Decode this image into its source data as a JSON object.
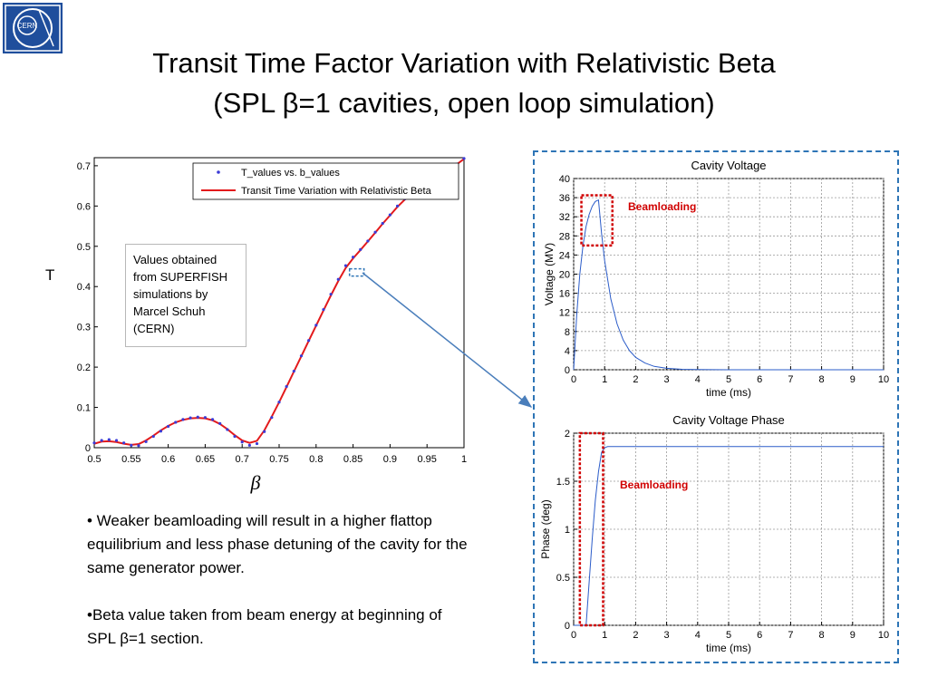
{
  "slide": {
    "title_line1": "Transit Time Factor Variation with Relativistic Beta",
    "title_line2": "(SPL β=1 cavities, open loop simulation)",
    "logo_text": "CERN",
    "t_axis_label": "T",
    "annotation": "Values obtained from SUPERFISH simulations by Marcel Schuh (CERN)",
    "bullet1": "• Weaker beamloading will result in a higher flattop equilibrium and less phase detuning of the cavity for the same generator power.",
    "bullet2": "•Beta value taken from beam energy at beginning of SPL β=1 section.",
    "beamloading_label_1": "Beamloading",
    "beamloading_label_2": "Beamloading"
  },
  "colors": {
    "accent_blue": "#2e75b6",
    "fit_red": "#e31a1c",
    "marker_blue": "#3b3bd6",
    "trace_blue": "#2b5cc9",
    "highlight_red": "#d00000",
    "logo_blue": "#1f4e9c"
  },
  "chart_data": [
    {
      "type": "line",
      "title": "",
      "xlabel": "β",
      "ylabel": "T",
      "xlim": [
        0.5,
        1.0
      ],
      "ylim": [
        0,
        0.72
      ],
      "xticks": [
        0.5,
        0.55,
        0.6,
        0.65,
        0.7,
        0.75,
        0.8,
        0.85,
        0.9,
        0.95,
        1
      ],
      "xtick_labels": [
        "0.5",
        "0.55",
        "0.6",
        "0.65",
        "0.7",
        "0.75",
        "0.8",
        "0.85",
        "0.9",
        "0.95",
        "1"
      ],
      "yticks": [
        0,
        0.1,
        0.2,
        0.3,
        0.4,
        0.5,
        0.6,
        0.7
      ],
      "ytick_labels": [
        "0",
        "0.1",
        "0.2",
        "0.3",
        "0.4",
        "0.5",
        "0.6",
        "0.7"
      ],
      "legend_position": "top-right",
      "series": [
        {
          "name": "T_values vs. b_values",
          "style": "markers",
          "x": [
            0.5,
            0.51,
            0.52,
            0.53,
            0.54,
            0.55,
            0.56,
            0.57,
            0.58,
            0.59,
            0.6,
            0.61,
            0.62,
            0.63,
            0.64,
            0.65,
            0.66,
            0.67,
            0.68,
            0.69,
            0.7,
            0.71,
            0.72,
            0.73,
            0.74,
            0.75,
            0.76,
            0.77,
            0.78,
            0.79,
            0.8,
            0.81,
            0.82,
            0.83,
            0.84,
            0.85,
            0.86,
            0.87,
            0.88,
            0.89,
            0.9,
            0.91,
            0.92,
            0.93,
            0.94,
            0.95,
            0.96,
            0.97,
            0.98,
            0.99,
            1.0
          ],
          "y": [
            0.012,
            0.018,
            0.02,
            0.018,
            0.012,
            0.006,
            0.005,
            0.015,
            0.028,
            0.041,
            0.053,
            0.063,
            0.07,
            0.074,
            0.076,
            0.075,
            0.07,
            0.06,
            0.045,
            0.028,
            0.014,
            0.006,
            0.01,
            0.04,
            0.075,
            0.113,
            0.152,
            0.19,
            0.228,
            0.266,
            0.304,
            0.343,
            0.381,
            0.418,
            0.452,
            0.473,
            0.492,
            0.513,
            0.535,
            0.557,
            0.578,
            0.6,
            0.618,
            0.632,
            0.646,
            0.656,
            0.667,
            0.678,
            0.69,
            0.704,
            0.718
          ]
        },
        {
          "name": "Transit Time Variation with Relativistic Beta",
          "style": "line",
          "x": [
            0.5,
            0.51,
            0.52,
            0.53,
            0.54,
            0.55,
            0.56,
            0.57,
            0.58,
            0.59,
            0.6,
            0.61,
            0.62,
            0.63,
            0.64,
            0.65,
            0.66,
            0.67,
            0.68,
            0.69,
            0.7,
            0.71,
            0.72,
            0.73,
            0.74,
            0.75,
            0.76,
            0.77,
            0.78,
            0.79,
            0.8,
            0.81,
            0.82,
            0.83,
            0.84,
            0.85,
            0.86,
            0.87,
            0.88,
            0.89,
            0.9,
            0.91,
            0.92,
            0.93,
            0.94,
            0.95,
            0.96,
            0.97,
            0.98,
            0.99,
            1.0
          ],
          "y": [
            0.01,
            0.015,
            0.016,
            0.014,
            0.01,
            0.007,
            0.009,
            0.018,
            0.03,
            0.043,
            0.054,
            0.063,
            0.069,
            0.073,
            0.074,
            0.073,
            0.068,
            0.059,
            0.046,
            0.031,
            0.018,
            0.012,
            0.017,
            0.043,
            0.077,
            0.113,
            0.151,
            0.189,
            0.227,
            0.265,
            0.303,
            0.341,
            0.378,
            0.414,
            0.446,
            0.47,
            0.491,
            0.512,
            0.534,
            0.556,
            0.577,
            0.598,
            0.616,
            0.63,
            0.644,
            0.655,
            0.666,
            0.677,
            0.689,
            0.703,
            0.717
          ]
        }
      ],
      "highlight_point": {
        "x": 0.855,
        "y": 0.435
      }
    },
    {
      "type": "line",
      "title": "Cavity Voltage",
      "xlabel": "time (ms)",
      "ylabel": "Voltage (MV)",
      "xlim": [
        0,
        10
      ],
      "ylim": [
        0,
        40
      ],
      "xticks": [
        0,
        1,
        2,
        3,
        4,
        5,
        6,
        7,
        8,
        9,
        10
      ],
      "xtick_labels": [
        "0",
        "1",
        "2",
        "3",
        "4",
        "5",
        "6",
        "7",
        "8",
        "9",
        "10"
      ],
      "yticks": [
        0,
        4,
        8,
        12,
        16,
        20,
        24,
        28,
        32,
        36,
        40
      ],
      "ytick_labels": [
        "0",
        "4",
        "8",
        "12",
        "16",
        "20",
        "24",
        "28",
        "32",
        "36",
        "40"
      ],
      "grid": true,
      "series": [
        {
          "x": [
            0,
            0.1,
            0.2,
            0.3,
            0.4,
            0.5,
            0.6,
            0.7,
            0.8,
            0.9,
            1.0,
            1.2,
            1.4,
            1.6,
            1.8,
            2.0,
            2.3,
            2.6,
            3.0,
            3.5,
            4.0,
            5.0,
            6.0,
            7.0,
            8.0,
            9.0,
            10.0
          ],
          "y": [
            0,
            11.5,
            20,
            26,
            30,
            32.5,
            34.2,
            35.2,
            35.5,
            28.5,
            22.8,
            14.8,
            9.6,
            6.2,
            4.0,
            2.6,
            1.4,
            0.7,
            0.3,
            0.1,
            0.05,
            0,
            0,
            0,
            0,
            0,
            0
          ]
        }
      ],
      "highlight_region": {
        "x": [
          0.25,
          1.25
        ],
        "y": [
          26,
          36.5
        ]
      }
    },
    {
      "type": "line",
      "title": "Cavity Voltage Phase",
      "xlabel": "time (ms)",
      "ylabel": "Phase (deg)",
      "xlim": [
        0,
        10
      ],
      "ylim": [
        0,
        2
      ],
      "xticks": [
        0,
        1,
        2,
        3,
        4,
        5,
        6,
        7,
        8,
        9,
        10
      ],
      "xtick_labels": [
        "0",
        "1",
        "2",
        "3",
        "4",
        "5",
        "6",
        "7",
        "8",
        "9",
        "10"
      ],
      "yticks": [
        0,
        0.5,
        1,
        1.5,
        2
      ],
      "ytick_labels": [
        "0",
        "0.5",
        "1",
        "1.5",
        "2"
      ],
      "grid": true,
      "series": [
        {
          "x": [
            0,
            0.4,
            0.4,
            0.5,
            0.6,
            0.7,
            0.8,
            0.9,
            1.0,
            1.1,
            2.0,
            5.0,
            10.0
          ],
          "y": [
            0,
            0,
            0,
            0.45,
            0.9,
            1.3,
            1.6,
            1.8,
            1.85,
            1.86,
            1.86,
            1.86,
            1.86
          ]
        }
      ],
      "highlight_region": {
        "x": [
          0.2,
          0.95
        ],
        "y": [
          0,
          2
        ]
      }
    }
  ]
}
